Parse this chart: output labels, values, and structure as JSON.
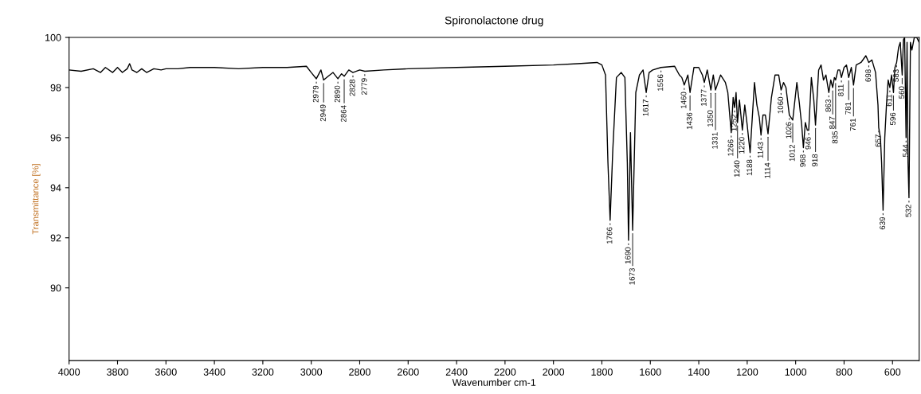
{
  "chart_data": {
    "type": "line",
    "title": "Spironolactone drug",
    "xlabel": "Wavenumber cm-1",
    "ylabel": "Transmittance [%]",
    "xlim": [
      4000,
      490
    ],
    "xticks": [
      4000,
      3800,
      3600,
      3400,
      3200,
      3000,
      2800,
      2600,
      2400,
      2200,
      2000,
      1800,
      1600,
      1400,
      1200,
      1000,
      800,
      600
    ],
    "ylim": [
      87.1,
      100
    ],
    "yticks": [
      90,
      92,
      94,
      96,
      98,
      100
    ],
    "grid": false,
    "legend": false,
    "marker": "none",
    "line_style": "solid",
    "series": [
      {
        "color": "#000000",
        "x": [
          4000,
          3950,
          3900,
          3870,
          3850,
          3820,
          3800,
          3780,
          3760,
          3750,
          3740,
          3720,
          3700,
          3680,
          3650,
          3620,
          3600,
          3550,
          3500,
          3400,
          3300,
          3200,
          3100,
          3020,
          3000,
          2979,
          2960,
          2949,
          2930,
          2910,
          2890,
          2875,
          2864,
          2845,
          2828,
          2800,
          2779,
          2700,
          2600,
          2400,
          2200,
          2000,
          1900,
          1820,
          1800,
          1785,
          1775,
          1766,
          1755,
          1740,
          1720,
          1705,
          1695,
          1690,
          1682,
          1673,
          1660,
          1645,
          1630,
          1617,
          1605,
          1590,
          1556,
          1500,
          1480,
          1470,
          1460,
          1445,
          1436,
          1420,
          1400,
          1385,
          1377,
          1365,
          1350,
          1340,
          1331,
          1310,
          1290,
          1280,
          1266,
          1258,
          1252,
          1246,
          1240,
          1232,
          1220,
          1210,
          1200,
          1188,
          1170,
          1160,
          1150,
          1143,
          1135,
          1125,
          1114,
          1100,
          1085,
          1070,
          1060,
          1050,
          1040,
          1026,
          1012,
          995,
          985,
          975,
          968,
          960,
          952,
          946,
          935,
          925,
          918,
          905,
          895,
          885,
          875,
          863,
          855,
          847,
          840,
          835,
          825,
          818,
          811,
          800,
          790,
          781,
          770,
          761,
          750,
          730,
          710,
          698,
          685,
          670,
          660,
          657,
          650,
          645,
          639,
          632,
          625,
          618,
          611,
          604,
          596,
          590,
          583,
          575,
          568,
          560,
          555,
          550,
          544,
          540,
          536,
          532,
          526,
          520,
          510,
          500,
          490
        ],
        "values": [
          98.7,
          98.65,
          98.75,
          98.6,
          98.8,
          98.6,
          98.8,
          98.6,
          98.75,
          98.95,
          98.7,
          98.6,
          98.75,
          98.6,
          98.75,
          98.7,
          98.75,
          98.75,
          98.8,
          98.8,
          98.75,
          98.8,
          98.8,
          98.85,
          98.6,
          98.35,
          98.7,
          98.3,
          98.45,
          98.6,
          98.35,
          98.55,
          98.45,
          98.7,
          98.6,
          98.7,
          98.65,
          98.7,
          98.75,
          98.8,
          98.85,
          98.9,
          98.95,
          99.0,
          98.9,
          98.5,
          95.0,
          92.7,
          95.5,
          98.4,
          98.6,
          98.4,
          95.0,
          91.9,
          96.2,
          92.3,
          97.8,
          98.5,
          98.7,
          97.8,
          98.6,
          98.7,
          98.8,
          98.85,
          98.5,
          98.4,
          98.1,
          98.5,
          97.8,
          98.8,
          98.8,
          98.5,
          98.2,
          98.7,
          97.9,
          98.5,
          97.9,
          98.5,
          98.2,
          97.8,
          96.2,
          97.6,
          97.2,
          97.8,
          96.6,
          97.5,
          96.3,
          97.3,
          96.5,
          95.4,
          98.2,
          97.3,
          96.8,
          96.1,
          96.9,
          96.9,
          96.15,
          97.6,
          98.5,
          98.5,
          97.9,
          98.2,
          98.0,
          96.9,
          96.7,
          98.2,
          97.4,
          96.5,
          95.6,
          96.6,
          96.3,
          96.3,
          98.4,
          97.5,
          96.5,
          98.7,
          98.9,
          98.3,
          98.5,
          97.8,
          98.3,
          98.0,
          98.4,
          98.3,
          98.7,
          98.7,
          98.4,
          98.8,
          98.9,
          98.4,
          98.8,
          98.1,
          98.9,
          99.0,
          99.27,
          99.0,
          99.1,
          98.6,
          97.3,
          96.4,
          96.0,
          95.0,
          93.1,
          96.0,
          97.3,
          98.3,
          98.0,
          98.5,
          97.8,
          98.8,
          99.0,
          99.6,
          99.8,
          98.5,
          99.9,
          100.0,
          96.0,
          99.8,
          95.0,
          93.6,
          99.8,
          99.5,
          100.0,
          100.0,
          99.8
        ]
      }
    ],
    "annotations": [
      {
        "text": "2979",
        "x": 2979,
        "y": 98.35
      },
      {
        "text": "2949",
        "x": 2949,
        "y": 98.3
      },
      {
        "text": "2890",
        "x": 2890,
        "y": 98.35
      },
      {
        "text": "2864",
        "x": 2864,
        "y": 98.45
      },
      {
        "text": "2828",
        "x": 2828,
        "y": 98.6
      },
      {
        "text": "2779",
        "x": 2779,
        "y": 98.65
      },
      {
        "text": "1766",
        "x": 1766,
        "y": 92.7
      },
      {
        "text": "1690",
        "x": 1690,
        "y": 91.9
      },
      {
        "text": "1673",
        "x": 1673,
        "y": 92.3
      },
      {
        "text": "1617",
        "x": 1617,
        "y": 97.8
      },
      {
        "text": "1556",
        "x": 1556,
        "y": 98.8
      },
      {
        "text": "1460",
        "x": 1460,
        "y": 98.1
      },
      {
        "text": "1436",
        "x": 1436,
        "y": 97.8
      },
      {
        "text": "1377",
        "x": 1377,
        "y": 98.2
      },
      {
        "text": "1350",
        "x": 1350,
        "y": 97.9
      },
      {
        "text": "1331",
        "x": 1331,
        "y": 97.9
      },
      {
        "text": "1266",
        "x": 1266,
        "y": 96.2
      },
      {
        "text": "1252",
        "x": 1252,
        "y": 97.2
      },
      {
        "text": "1240",
        "x": 1240,
        "y": 96.6
      },
      {
        "text": "1220",
        "x": 1220,
        "y": 96.3
      },
      {
        "text": "1188",
        "x": 1188,
        "y": 95.4
      },
      {
        "text": "1143",
        "x": 1143,
        "y": 96.1
      },
      {
        "text": "1114",
        "x": 1114,
        "y": 96.15
      },
      {
        "text": "1060",
        "x": 1060,
        "y": 97.9
      },
      {
        "text": "1026",
        "x": 1026,
        "y": 96.9
      },
      {
        "text": "1012",
        "x": 1012,
        "y": 96.7
      },
      {
        "text": "968",
        "x": 968,
        "y": 95.6
      },
      {
        "text": "946",
        "x": 946,
        "y": 96.3
      },
      {
        "text": "918",
        "x": 918,
        "y": 96.5
      },
      {
        "text": "863",
        "x": 863,
        "y": 97.8
      },
      {
        "text": "847",
        "x": 847,
        "y": 98.0
      },
      {
        "text": "835",
        "x": 835,
        "y": 98.3
      },
      {
        "text": "811",
        "x": 811,
        "y": 98.4
      },
      {
        "text": "781",
        "x": 781,
        "y": 98.4
      },
      {
        "text": "761",
        "x": 761,
        "y": 98.1
      },
      {
        "text": "698",
        "x": 698,
        "y": 99.0
      },
      {
        "text": "657",
        "x": 657,
        "y": 96.4
      },
      {
        "text": "639",
        "x": 639,
        "y": 93.1
      },
      {
        "text": "611",
        "x": 611,
        "y": 98.0
      },
      {
        "text": "596",
        "x": 596,
        "y": 97.8
      },
      {
        "text": "583",
        "x": 583,
        "y": 99.0
      },
      {
        "text": "560",
        "x": 560,
        "y": 98.5
      },
      {
        "text": "544",
        "x": 544,
        "y": 96.0
      },
      {
        "text": "532",
        "x": 532,
        "y": 93.6
      }
    ]
  }
}
